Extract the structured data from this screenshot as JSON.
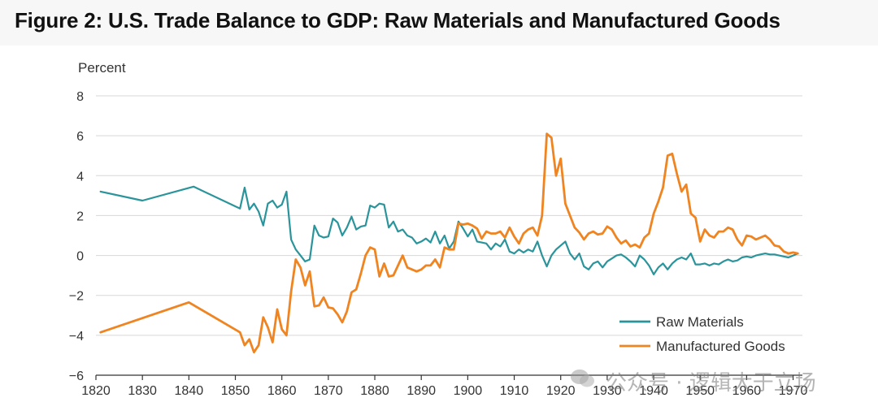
{
  "title": "Figure 2: U.S. Trade Balance to GDP: Raw Materials and Manufactured Goods",
  "watermark": "公众号 · 逻辑大于立场",
  "watermark_icon": "wechat-icon",
  "colors": {
    "raw": "#2a949b",
    "manufactured": "#ef8421",
    "grid": "#d7d7d7",
    "text": "#333333"
  },
  "chart_data": {
    "type": "line",
    "title": "",
    "xlabel": "",
    "ylabel": "Percent",
    "xlim": [
      1820,
      1972
    ],
    "ylim": [
      -6,
      8
    ],
    "x_ticks": [
      1820,
      1830,
      1840,
      1850,
      1860,
      1870,
      1880,
      1890,
      1900,
      1910,
      1920,
      1930,
      1940,
      1950,
      1960,
      1970
    ],
    "y_ticks": [
      -6,
      -4,
      -2,
      0,
      2,
      4,
      6,
      8
    ],
    "y_tick_labels": [
      "−6",
      "−4",
      "−2",
      "0",
      "2",
      "4",
      "6",
      "8"
    ],
    "grid": "horizontal",
    "legend": "bottom-right",
    "series": [
      {
        "name": "Raw Materials",
        "color": "#2a949b",
        "points": [
          [
            1821,
            3.2
          ],
          [
            1830,
            2.75
          ],
          [
            1841,
            3.45
          ],
          [
            1851,
            2.35
          ],
          [
            1852,
            3.4
          ],
          [
            1853,
            2.3
          ],
          [
            1854,
            2.6
          ],
          [
            1855,
            2.2
          ],
          [
            1856,
            1.5
          ],
          [
            1857,
            2.6
          ],
          [
            1858,
            2.75
          ],
          [
            1859,
            2.4
          ],
          [
            1860,
            2.55
          ],
          [
            1861,
            3.2
          ],
          [
            1862,
            0.8
          ],
          [
            1863,
            0.3
          ],
          [
            1864,
            0.0
          ],
          [
            1865,
            -0.3
          ],
          [
            1866,
            -0.2
          ],
          [
            1867,
            1.5
          ],
          [
            1868,
            1.0
          ],
          [
            1869,
            0.9
          ],
          [
            1870,
            0.95
          ],
          [
            1871,
            1.85
          ],
          [
            1872,
            1.65
          ],
          [
            1873,
            1.0
          ],
          [
            1874,
            1.4
          ],
          [
            1875,
            1.95
          ],
          [
            1876,
            1.3
          ],
          [
            1877,
            1.45
          ],
          [
            1878,
            1.5
          ],
          [
            1879,
            2.5
          ],
          [
            1880,
            2.4
          ],
          [
            1881,
            2.6
          ],
          [
            1882,
            2.55
          ],
          [
            1883,
            1.4
          ],
          [
            1884,
            1.7
          ],
          [
            1885,
            1.2
          ],
          [
            1886,
            1.3
          ],
          [
            1887,
            1.0
          ],
          [
            1888,
            0.9
          ],
          [
            1889,
            0.6
          ],
          [
            1890,
            0.7
          ],
          [
            1891,
            0.85
          ],
          [
            1892,
            0.65
          ],
          [
            1893,
            1.2
          ],
          [
            1894,
            0.6
          ],
          [
            1895,
            1.0
          ],
          [
            1896,
            0.35
          ],
          [
            1897,
            0.7
          ],
          [
            1898,
            1.7
          ],
          [
            1899,
            1.35
          ],
          [
            1900,
            0.95
          ],
          [
            1901,
            1.3
          ],
          [
            1902,
            0.7
          ],
          [
            1903,
            0.65
          ],
          [
            1904,
            0.6
          ],
          [
            1905,
            0.3
          ],
          [
            1906,
            0.6
          ],
          [
            1907,
            0.45
          ],
          [
            1908,
            0.8
          ],
          [
            1909,
            0.2
          ],
          [
            1910,
            0.1
          ],
          [
            1911,
            0.3
          ],
          [
            1912,
            0.15
          ],
          [
            1913,
            0.3
          ],
          [
            1914,
            0.2
          ],
          [
            1915,
            0.7
          ],
          [
            1916,
            0.0
          ],
          [
            1917,
            -0.55
          ],
          [
            1918,
            0.0
          ],
          [
            1919,
            0.3
          ],
          [
            1920,
            0.5
          ],
          [
            1921,
            0.7
          ],
          [
            1922,
            0.1
          ],
          [
            1923,
            -0.2
          ],
          [
            1924,
            0.1
          ],
          [
            1925,
            -0.55
          ],
          [
            1926,
            -0.7
          ],
          [
            1927,
            -0.4
          ],
          [
            1928,
            -0.3
          ],
          [
            1929,
            -0.6
          ],
          [
            1930,
            -0.3
          ],
          [
            1931,
            -0.15
          ],
          [
            1932,
            0.0
          ],
          [
            1933,
            0.05
          ],
          [
            1934,
            -0.1
          ],
          [
            1935,
            -0.3
          ],
          [
            1936,
            -0.55
          ],
          [
            1937,
            0.0
          ],
          [
            1938,
            -0.2
          ],
          [
            1939,
            -0.5
          ],
          [
            1940,
            -0.95
          ],
          [
            1941,
            -0.6
          ],
          [
            1942,
            -0.4
          ],
          [
            1943,
            -0.7
          ],
          [
            1944,
            -0.4
          ],
          [
            1945,
            -0.2
          ],
          [
            1946,
            -0.1
          ],
          [
            1947,
            -0.2
          ],
          [
            1948,
            0.1
          ],
          [
            1949,
            -0.45
          ],
          [
            1950,
            -0.45
          ],
          [
            1951,
            -0.4
          ],
          [
            1952,
            -0.5
          ],
          [
            1953,
            -0.4
          ],
          [
            1954,
            -0.45
          ],
          [
            1955,
            -0.3
          ],
          [
            1956,
            -0.2
          ],
          [
            1957,
            -0.3
          ],
          [
            1958,
            -0.25
          ],
          [
            1959,
            -0.1
          ],
          [
            1960,
            -0.05
          ],
          [
            1961,
            -0.1
          ],
          [
            1962,
            0.0
          ],
          [
            1963,
            0.05
          ],
          [
            1964,
            0.1
          ],
          [
            1965,
            0.05
          ],
          [
            1966,
            0.05
          ],
          [
            1967,
            0.0
          ],
          [
            1968,
            -0.05
          ],
          [
            1969,
            -0.1
          ],
          [
            1970,
            0.0
          ],
          [
            1971,
            0.1
          ]
        ]
      },
      {
        "name": "Manufactured Goods",
        "color": "#ef8421",
        "points": [
          [
            1821,
            -3.85
          ],
          [
            1840,
            -2.35
          ],
          [
            1851,
            -3.85
          ],
          [
            1852,
            -4.5
          ],
          [
            1853,
            -4.2
          ],
          [
            1854,
            -4.85
          ],
          [
            1855,
            -4.5
          ],
          [
            1856,
            -3.1
          ],
          [
            1857,
            -3.6
          ],
          [
            1858,
            -4.35
          ],
          [
            1859,
            -2.7
          ],
          [
            1860,
            -3.7
          ],
          [
            1861,
            -4.0
          ],
          [
            1862,
            -1.8
          ],
          [
            1863,
            -0.2
          ],
          [
            1864,
            -0.6
          ],
          [
            1865,
            -1.5
          ],
          [
            1866,
            -0.8
          ],
          [
            1867,
            -2.55
          ],
          [
            1868,
            -2.5
          ],
          [
            1869,
            -2.1
          ],
          [
            1870,
            -2.6
          ],
          [
            1871,
            -2.65
          ],
          [
            1872,
            -2.95
          ],
          [
            1873,
            -3.35
          ],
          [
            1874,
            -2.8
          ],
          [
            1875,
            -1.85
          ],
          [
            1876,
            -1.7
          ],
          [
            1877,
            -0.9
          ],
          [
            1878,
            0.0
          ],
          [
            1879,
            0.4
          ],
          [
            1880,
            0.3
          ],
          [
            1881,
            -1.05
          ],
          [
            1882,
            -0.4
          ],
          [
            1883,
            -1.05
          ],
          [
            1884,
            -1.0
          ],
          [
            1885,
            -0.5
          ],
          [
            1886,
            0.0
          ],
          [
            1887,
            -0.6
          ],
          [
            1888,
            -0.7
          ],
          [
            1889,
            -0.8
          ],
          [
            1890,
            -0.7
          ],
          [
            1891,
            -0.5
          ],
          [
            1892,
            -0.5
          ],
          [
            1893,
            -0.2
          ],
          [
            1894,
            -0.6
          ],
          [
            1895,
            0.4
          ],
          [
            1896,
            0.3
          ],
          [
            1897,
            0.3
          ],
          [
            1898,
            1.6
          ],
          [
            1899,
            1.55
          ],
          [
            1900,
            1.6
          ],
          [
            1901,
            1.5
          ],
          [
            1902,
            1.35
          ],
          [
            1903,
            0.85
          ],
          [
            1904,
            1.2
          ],
          [
            1905,
            1.1
          ],
          [
            1906,
            1.1
          ],
          [
            1907,
            1.2
          ],
          [
            1908,
            0.9
          ],
          [
            1909,
            1.4
          ],
          [
            1910,
            0.95
          ],
          [
            1911,
            0.6
          ],
          [
            1912,
            1.1
          ],
          [
            1913,
            1.3
          ],
          [
            1914,
            1.4
          ],
          [
            1915,
            1.0
          ],
          [
            1916,
            2.0
          ],
          [
            1917,
            6.1
          ],
          [
            1918,
            5.9
          ],
          [
            1919,
            4.0
          ],
          [
            1920,
            4.85
          ],
          [
            1921,
            2.6
          ],
          [
            1922,
            2.0
          ],
          [
            1923,
            1.4
          ],
          [
            1924,
            1.15
          ],
          [
            1925,
            0.8
          ],
          [
            1926,
            1.1
          ],
          [
            1927,
            1.2
          ],
          [
            1928,
            1.05
          ],
          [
            1929,
            1.1
          ],
          [
            1930,
            1.45
          ],
          [
            1931,
            1.3
          ],
          [
            1932,
            0.9
          ],
          [
            1933,
            0.6
          ],
          [
            1934,
            0.75
          ],
          [
            1935,
            0.45
          ],
          [
            1936,
            0.55
          ],
          [
            1937,
            0.4
          ],
          [
            1938,
            0.9
          ],
          [
            1939,
            1.1
          ],
          [
            1940,
            2.1
          ],
          [
            1941,
            2.7
          ],
          [
            1942,
            3.4
          ],
          [
            1943,
            5.0
          ],
          [
            1944,
            5.1
          ],
          [
            1945,
            4.1
          ],
          [
            1946,
            3.2
          ],
          [
            1947,
            3.55
          ],
          [
            1948,
            2.1
          ],
          [
            1949,
            1.9
          ],
          [
            1950,
            0.7
          ],
          [
            1951,
            1.3
          ],
          [
            1952,
            1.0
          ],
          [
            1953,
            0.9
          ],
          [
            1954,
            1.2
          ],
          [
            1955,
            1.2
          ],
          [
            1956,
            1.4
          ],
          [
            1957,
            1.3
          ],
          [
            1958,
            0.8
          ],
          [
            1959,
            0.5
          ],
          [
            1960,
            1.0
          ],
          [
            1961,
            0.95
          ],
          [
            1962,
            0.8
          ],
          [
            1963,
            0.9
          ],
          [
            1964,
            1.0
          ],
          [
            1965,
            0.8
          ],
          [
            1966,
            0.5
          ],
          [
            1967,
            0.45
          ],
          [
            1968,
            0.2
          ],
          [
            1969,
            0.1
          ],
          [
            1970,
            0.15
          ],
          [
            1971,
            0.1
          ]
        ]
      }
    ]
  }
}
